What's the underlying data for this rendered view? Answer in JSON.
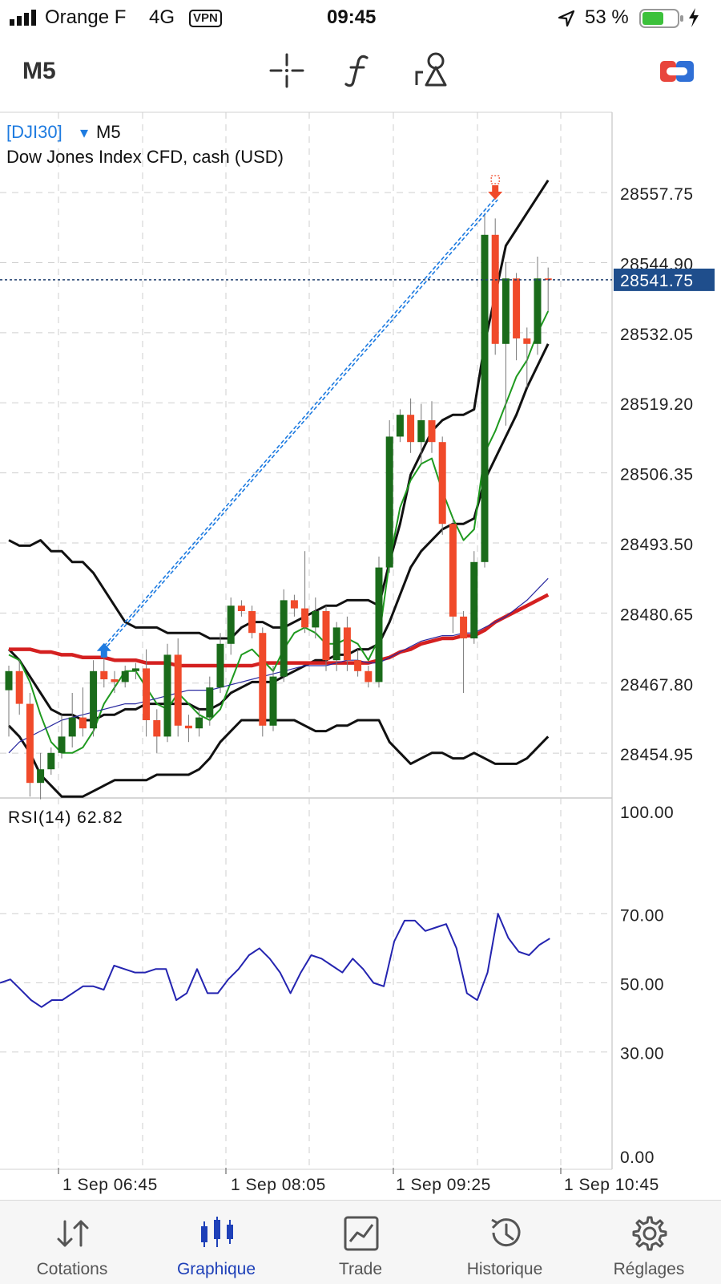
{
  "status_bar": {
    "carrier": "Orange F",
    "network": "4G",
    "vpn": "VPN",
    "time": "09:45",
    "battery": "53 %"
  },
  "toolbar": {
    "timeframe": "M5",
    "icons": [
      "crosshair-icon",
      "function-icon",
      "objects-icon",
      "account-toggle-icon"
    ]
  },
  "chart": {
    "symbol": "[DJI30]",
    "dropdown_glyph": "▾",
    "timeframe": "M5",
    "description": "Dow Jones Index CFD, cash (USD)",
    "price_ticks": [
      "28557.75",
      "28544.90",
      "28532.05",
      "28519.20",
      "28506.35",
      "28493.50",
      "28480.65",
      "28467.80",
      "28454.95"
    ],
    "current_price": "28541.75",
    "rsi_label": "RSI(14) 62.82",
    "rsi_ticks": [
      "100.00",
      "70.00",
      "50.00",
      "30.00",
      "0.00"
    ],
    "time_ticks": [
      "1 Sep 06:45",
      "1 Sep 08:05",
      "1 Sep 09:25",
      "1 Sep 10:45"
    ],
    "colors": {
      "bull": "#1a6b1a",
      "bear": "#f04a2a",
      "ma_red": "#d42020",
      "bands": "#111111",
      "ma_green": "#1f9a1f",
      "ma_blue": "#2a2aa0",
      "rsi_line": "#2424b0",
      "trade_line": "#1e7be0",
      "price_label_bg": "#1f4e8c"
    }
  },
  "chart_data": [
    {
      "type": "candlestick",
      "title": "[DJI30] M5",
      "subtitle": "Dow Jones Index CFD, cash (USD)",
      "ylim": [
        28446.0,
        28571.0
      ],
      "y_ticks": [
        28557.75,
        28544.9,
        28532.05,
        28519.2,
        28506.35,
        28493.5,
        28480.65,
        28467.8,
        28454.95
      ],
      "x_ticks": [
        "1 Sep 06:45",
        "1 Sep 08:05",
        "1 Sep 09:25",
        "1 Sep 10:45"
      ],
      "last_price": 28541.75,
      "candles": [
        {
          "o": 28466.5,
          "h": 28471.0,
          "l": 28458.0,
          "c": 28470.0
        },
        {
          "o": 28470.0,
          "h": 28472.0,
          "l": 28462.0,
          "c": 28464.0
        },
        {
          "o": 28464.0,
          "h": 28466.0,
          "l": 28447.0,
          "c": 28449.5
        },
        {
          "o": 28449.5,
          "h": 28455.0,
          "l": 28446.5,
          "c": 28452.0
        },
        {
          "o": 28452.0,
          "h": 28456.0,
          "l": 28451.0,
          "c": 28455.0
        },
        {
          "o": 28455.0,
          "h": 28462.0,
          "l": 28454.0,
          "c": 28458.0
        },
        {
          "o": 28458.0,
          "h": 28466.0,
          "l": 28456.0,
          "c": 28461.5
        },
        {
          "o": 28461.5,
          "h": 28467.0,
          "l": 28458.0,
          "c": 28459.5
        },
        {
          "o": 28459.5,
          "h": 28472.0,
          "l": 28458.0,
          "c": 28470.0
        },
        {
          "o": 28470.0,
          "h": 28473.0,
          "l": 28467.0,
          "c": 28468.5
        },
        {
          "o": 28468.5,
          "h": 28470.0,
          "l": 28466.0,
          "c": 28468.0
        },
        {
          "o": 28468.0,
          "h": 28471.0,
          "l": 28467.0,
          "c": 28470.0
        },
        {
          "o": 28470.0,
          "h": 28471.5,
          "l": 28468.5,
          "c": 28470.5
        },
        {
          "o": 28470.5,
          "h": 28474.0,
          "l": 28458.0,
          "c": 28461.0
        },
        {
          "o": 28461.0,
          "h": 28463.0,
          "l": 28455.0,
          "c": 28458.0
        },
        {
          "o": 28458.0,
          "h": 28475.0,
          "l": 28457.0,
          "c": 28473.0
        },
        {
          "o": 28473.0,
          "h": 28476.0,
          "l": 28458.0,
          "c": 28460.0
        },
        {
          "o": 28460.0,
          "h": 28462.0,
          "l": 28457.0,
          "c": 28459.5
        },
        {
          "o": 28459.5,
          "h": 28463.0,
          "l": 28458.0,
          "c": 28461.5
        },
        {
          "o": 28461.5,
          "h": 28469.0,
          "l": 28460.0,
          "c": 28467.0
        },
        {
          "o": 28467.0,
          "h": 28477.0,
          "l": 28466.0,
          "c": 28475.0
        },
        {
          "o": 28475.0,
          "h": 28483.5,
          "l": 28473.0,
          "c": 28482.0
        },
        {
          "o": 28482.0,
          "h": 28483.0,
          "l": 28480.0,
          "c": 28481.0
        },
        {
          "o": 28481.0,
          "h": 28482.0,
          "l": 28476.0,
          "c": 28477.0
        },
        {
          "o": 28477.0,
          "h": 28478.0,
          "l": 28458.0,
          "c": 28460.0
        },
        {
          "o": 28460.0,
          "h": 28471.0,
          "l": 28459.0,
          "c": 28469.0
        },
        {
          "o": 28469.0,
          "h": 28485.0,
          "l": 28468.0,
          "c": 28483.0
        },
        {
          "o": 28483.0,
          "h": 28484.0,
          "l": 28480.0,
          "c": 28481.5
        },
        {
          "o": 28481.5,
          "h": 28492.0,
          "l": 28477.0,
          "c": 28478.0
        },
        {
          "o": 28478.0,
          "h": 28483.5,
          "l": 28476.0,
          "c": 28481.0
        },
        {
          "o": 28481.0,
          "h": 28482.0,
          "l": 28470.0,
          "c": 28472.0
        },
        {
          "o": 28472.0,
          "h": 28479.0,
          "l": 28470.0,
          "c": 28478.0
        },
        {
          "o": 28478.0,
          "h": 28480.0,
          "l": 28470.0,
          "c": 28472.0
        },
        {
          "o": 28472.0,
          "h": 28474.0,
          "l": 28469.0,
          "c": 28470.0
        },
        {
          "o": 28470.0,
          "h": 28471.0,
          "l": 28467.0,
          "c": 28468.0
        },
        {
          "o": 28468.0,
          "h": 28491.0,
          "l": 28467.0,
          "c": 28489.0
        },
        {
          "o": 28489.0,
          "h": 28516.0,
          "l": 28488.0,
          "c": 28513.0
        },
        {
          "o": 28513.0,
          "h": 28518.0,
          "l": 28512.0,
          "c": 28517.0
        },
        {
          "o": 28517.0,
          "h": 28520.0,
          "l": 28510.0,
          "c": 28512.0
        },
        {
          "o": 28512.0,
          "h": 28519.0,
          "l": 28508.0,
          "c": 28516.0
        },
        {
          "o": 28516.0,
          "h": 28519.5,
          "l": 28510.0,
          "c": 28512.0
        },
        {
          "o": 28512.0,
          "h": 28513.0,
          "l": 28495.0,
          "c": 28497.0
        },
        {
          "o": 28497.0,
          "h": 28498.0,
          "l": 28477.0,
          "c": 28480.0
        },
        {
          "o": 28480.0,
          "h": 28481.0,
          "l": 28466.0,
          "c": 28476.0
        },
        {
          "o": 28476.0,
          "h": 28492.0,
          "l": 28475.0,
          "c": 28490.0
        },
        {
          "o": 28490.0,
          "h": 28554.0,
          "l": 28489.0,
          "c": 28550.0
        },
        {
          "o": 28550.0,
          "h": 28553.0,
          "l": 28528.0,
          "c": 28530.0
        },
        {
          "o": 28530.0,
          "h": 28545.0,
          "l": 28515.0,
          "c": 28542.0
        },
        {
          "o": 28542.0,
          "h": 28543.0,
          "l": 28527.0,
          "c": 28531.0
        },
        {
          "o": 28531.0,
          "h": 28533.0,
          "l": 28522.0,
          "c": 28530.0
        },
        {
          "o": 28530.0,
          "h": 28546.0,
          "l": 28528.0,
          "c": 28542.0
        },
        {
          "o": 28542.0,
          "h": 28544.0,
          "l": 28536.0,
          "c": 28541.75
        }
      ],
      "series": [
        {
          "kind": "band_upper",
          "color": "#111111",
          "values": [
            28494,
            28493,
            28493,
            28494,
            28492,
            28492,
            28490,
            28490,
            28488,
            28485,
            28482,
            28479,
            28478,
            28478,
            28478,
            28477,
            28477,
            28477,
            28477,
            28476,
            28476,
            28476,
            28478,
            28479,
            28479,
            28478,
            28478,
            28479,
            28480,
            28481,
            28482,
            28482,
            28483,
            28483,
            28483,
            28482,
            28490,
            28497,
            28506,
            28510,
            28514,
            28516,
            28517,
            28517,
            28518,
            28530,
            28539,
            28548,
            28551,
            28554,
            28557,
            28560
          ]
        },
        {
          "kind": "band_middle",
          "color": "#111111",
          "values": [
            28474,
            28472,
            28469,
            28466,
            28463,
            28462,
            28462,
            28461,
            28461,
            28462,
            28462,
            28463,
            28463,
            28464,
            28464,
            28464,
            28464,
            28464,
            28463,
            28463,
            28464,
            28466,
            28467,
            28468,
            28468,
            28468,
            28469,
            28470,
            28471,
            28472,
            28472,
            28473,
            28473,
            28474,
            28474,
            28475,
            28479,
            28484,
            28489,
            28492,
            28494,
            28496,
            28497,
            28497,
            28498,
            28505,
            28509,
            28513,
            28517,
            28522,
            28526,
            28530
          ]
        },
        {
          "kind": "band_lower",
          "color": "#111111",
          "values": [
            28460,
            28458,
            28455,
            28451,
            28449,
            28447,
            28447,
            28447,
            28448,
            28449,
            28450,
            28450,
            28450,
            28450,
            28451,
            28451,
            28451,
            28451,
            28452,
            28454,
            28457,
            28459,
            28461,
            28461,
            28461,
            28461,
            28461,
            28461,
            28460,
            28459,
            28459,
            28460,
            28460,
            28461,
            28461,
            28461,
            28457,
            28455,
            28453,
            28454,
            28455,
            28455,
            28454,
            28454,
            28455,
            28454,
            28453,
            28453,
            28453,
            28454,
            28456,
            28458
          ]
        },
        {
          "kind": "ma_slow",
          "color": "#d42020",
          "values": [
            28474,
            28474,
            28474,
            28473.5,
            28473.5,
            28473,
            28473,
            28472.5,
            28472.5,
            28472.5,
            28472,
            28472,
            28472,
            28471.5,
            28471.5,
            28471.5,
            28471,
            28471,
            28471,
            28471,
            28471,
            28471,
            28471,
            28471,
            28471.5,
            28471.5,
            28471.5,
            28471.5,
            28471.5,
            28471.5,
            28471.5,
            28471.5,
            28471.5,
            28471.5,
            28471.5,
            28472,
            28472.5,
            28473.5,
            28474,
            28475,
            28475.5,
            28476,
            28476,
            28476.5,
            28476.5,
            28477.5,
            28479,
            28480,
            28481,
            28482,
            28483,
            28484
          ]
        },
        {
          "kind": "ma_fast",
          "color": "#1f9a1f",
          "values": [
            28473,
            28472,
            28468,
            28462,
            28457,
            28455,
            28455,
            28456,
            28459,
            28464,
            28467,
            28470,
            28470,
            28467,
            28464,
            28463,
            28466,
            28464,
            28462,
            28461,
            28463,
            28468,
            28473,
            28474,
            28472,
            28470,
            28474,
            28477,
            28478,
            28477,
            28475,
            28475,
            28476,
            28475,
            28472,
            28476,
            28490,
            28500,
            28505,
            28508,
            28509,
            28503,
            28498,
            28494,
            28496,
            28510,
            28514,
            28519,
            28524,
            28527,
            28532,
            28536
          ]
        },
        {
          "kind": "ma_mid",
          "color": "#2a2aa0",
          "values": [
            28455,
            28457,
            28458,
            28459,
            28460,
            28461,
            28461.5,
            28462,
            28462.5,
            28463,
            28463.5,
            28464,
            28464,
            28464.5,
            28465,
            28465.5,
            28466,
            28466.5,
            28466.5,
            28466.5,
            28467,
            28467.5,
            28468,
            28468.5,
            28469,
            28469.5,
            28470,
            28470.5,
            28471,
            28471,
            28471,
            28471.5,
            28472,
            28472,
            28471.5,
            28471.5,
            28472.5,
            28473.5,
            28474.5,
            28475.5,
            28476,
            28476.5,
            28476.5,
            28477,
            28477,
            28478,
            28479,
            28480,
            28481.5,
            28483,
            28485,
            28487
          ]
        }
      ],
      "trade": {
        "open_price": 28472.5,
        "close_price": 28558.5,
        "open_candle": 9,
        "close_candle": 46
      }
    },
    {
      "type": "line",
      "title": "RSI(14) 62.82",
      "ylim": [
        0,
        100
      ],
      "y_ticks": [
        100,
        70,
        50,
        30,
        0
      ],
      "x_ticks": [
        "1 Sep 06:45",
        "1 Sep 08:05",
        "1 Sep 09:25",
        "1 Sep 10:45"
      ],
      "series": [
        {
          "name": "RSI(14)",
          "values": [
            50,
            51,
            48,
            45,
            43,
            45,
            45,
            47,
            49,
            49,
            48,
            55,
            54,
            53,
            53,
            54,
            54,
            45,
            47,
            54,
            47,
            47,
            51,
            54,
            58,
            60,
            57,
            53,
            47,
            53,
            58,
            57,
            55,
            53,
            57,
            54,
            50,
            49,
            62,
            68,
            68,
            65,
            66,
            67,
            60,
            47,
            45,
            53,
            70,
            63,
            59,
            58,
            61,
            62.82
          ]
        }
      ]
    }
  ],
  "tabbar": {
    "items": [
      {
        "label": "Cotations",
        "icon": "quotes-arrows-icon",
        "active": false
      },
      {
        "label": "Graphique",
        "icon": "candlestick-chart-icon",
        "active": true
      },
      {
        "label": "Trade",
        "icon": "trade-chart-icon",
        "active": false
      },
      {
        "label": "Historique",
        "icon": "history-clock-icon",
        "active": false
      },
      {
        "label": "Réglages",
        "icon": "settings-gear-icon",
        "active": false
      }
    ]
  }
}
